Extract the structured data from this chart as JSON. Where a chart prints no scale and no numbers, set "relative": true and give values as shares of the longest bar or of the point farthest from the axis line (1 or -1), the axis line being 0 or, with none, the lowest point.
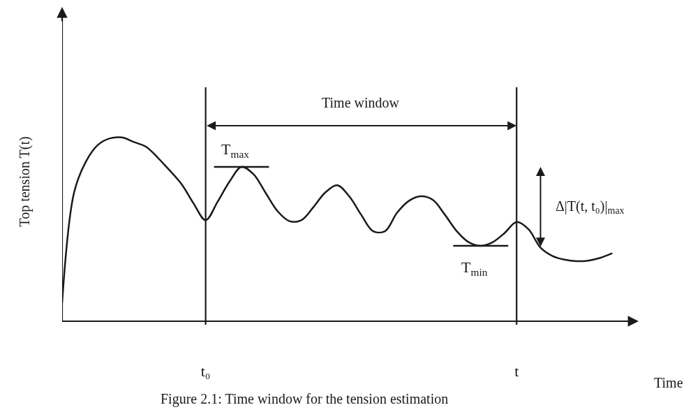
{
  "chart_data": {
    "type": "line",
    "relative": true,
    "ylabel": "Top tension T(t)",
    "xlabel": "Time",
    "categories": [
      null,
      null,
      null,
      null,
      null,
      null,
      null,
      null,
      null,
      null,
      null,
      null,
      "t₀",
      null,
      null,
      null,
      null,
      null,
      null,
      null,
      null,
      null,
      null,
      null,
      null,
      null,
      null,
      null,
      null,
      null,
      null,
      null,
      null,
      null,
      null,
      null,
      null,
      null,
      "t",
      null,
      null,
      null,
      null,
      null,
      null,
      null,
      null
    ],
    "grid": "x",
    "marker": "none",
    "line_style": "solid",
    "series": [
      {
        "color": "#1a1a1a",
        "values": [
          0.1,
          0.7,
          0.87,
          0.96,
          0.995,
          1,
          0.975,
          0.95,
          0.89,
          0.82,
          0.745,
          0.64,
          0.55,
          0.65,
          0.76,
          0.84,
          0.8,
          0.7,
          0.6,
          0.545,
          0.55,
          0.62,
          0.7,
          0.74,
          0.68,
          0.58,
          0.49,
          0.49,
          0.59,
          0.655,
          0.68,
          0.66,
          0.58,
          0.49,
          0.43,
          0.41,
          0.43,
          0.48,
          0.54,
          0.5,
          0.4,
          0.355,
          0.335,
          0.327,
          0.33,
          0.345,
          0.37
        ]
      }
    ],
    "annotations": [
      "T$_{max}$",
      "T$_{min}$",
      "Δ|T(t, t₀)|$_{max}$",
      "Time window",
      "Figure 2.1: Time window for the tension estimation"
    ]
  }
}
